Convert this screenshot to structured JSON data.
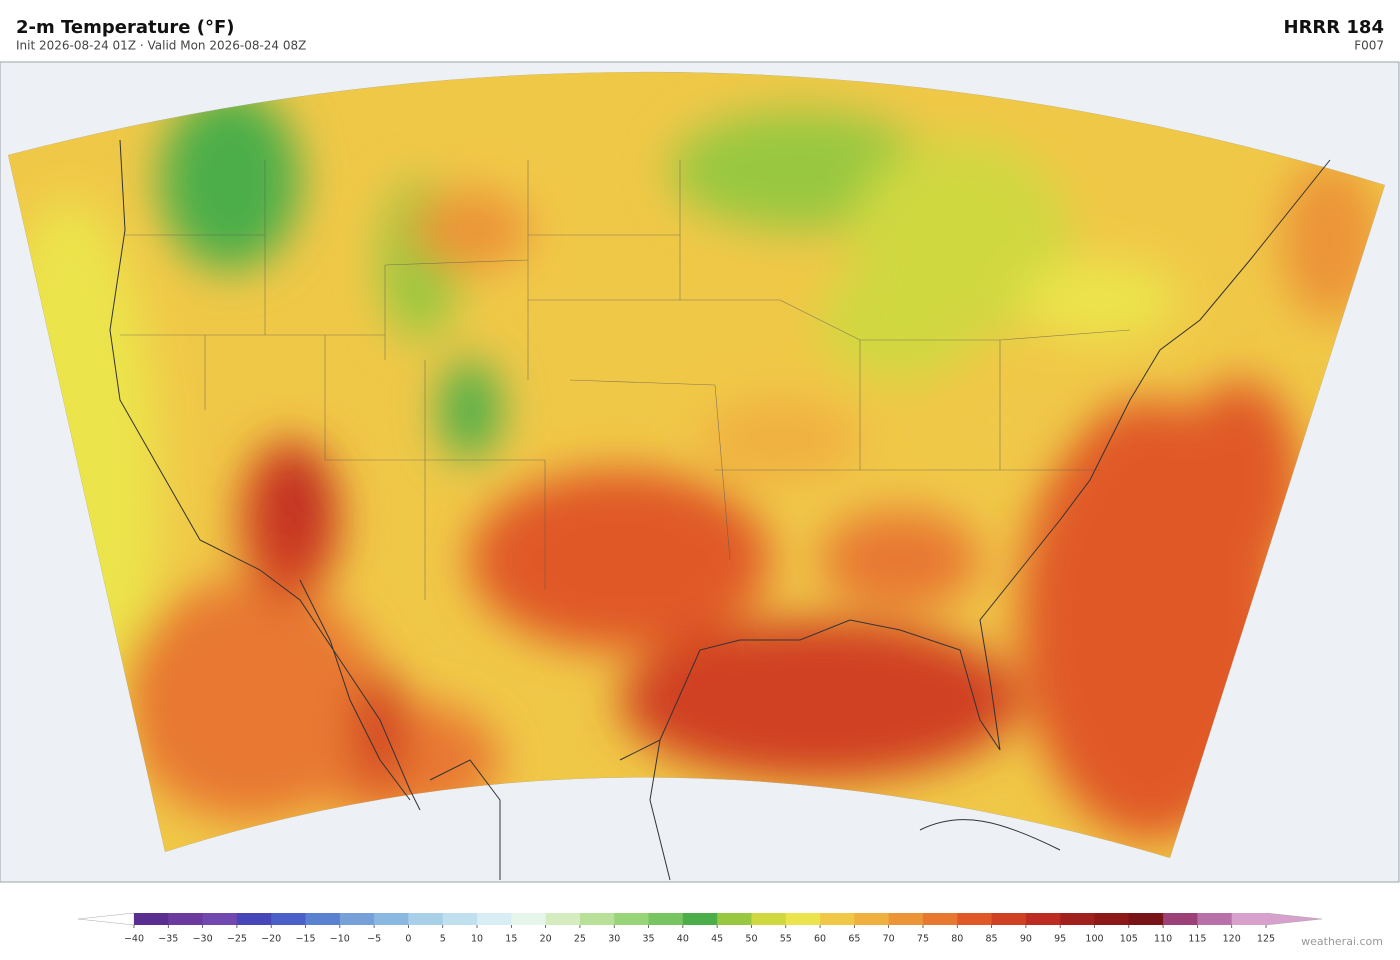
{
  "header": {
    "title": "2-m Temperature  (°F)",
    "subtitle": "Init 2026-08-24 01Z   ·   Valid Mon 2026-08-24 08Z",
    "model": "HRRR  184",
    "forecast_hour": "F007"
  },
  "colorbar": {
    "ticks": [
      {
        "value": -40,
        "label": "−40"
      },
      {
        "value": -35,
        "label": "−35"
      },
      {
        "value": -30,
        "label": "−30"
      },
      {
        "value": -25,
        "label": "−25"
      },
      {
        "value": -20,
        "label": "−20"
      },
      {
        "value": -15,
        "label": "−15"
      },
      {
        "value": -10,
        "label": "−10"
      },
      {
        "value": -5,
        "label": "−5"
      },
      0,
      5,
      10,
      15,
      20,
      25,
      30,
      35,
      40,
      45,
      50,
      55,
      60,
      65,
      70,
      75,
      80,
      85,
      90,
      95,
      100,
      105,
      110,
      115,
      120,
      125
    ],
    "colors": [
      "#5a2d91",
      "#6a3a9e",
      "#7048b0",
      "#4646b8",
      "#4a60c8",
      "#5a80d0",
      "#78a0d8",
      "#8ab8e0",
      "#a8d0e8",
      "#c0e0f0",
      "#d8eef4",
      "#e6f6ea",
      "#d4ecc0",
      "#b8e098",
      "#98d478",
      "#78c460",
      "#4cae48",
      "#98c840",
      "#d0d840",
      "#ece44c",
      "#f0c848",
      "#f0b040",
      "#ec9438",
      "#e87830",
      "#e05828",
      "#d04022",
      "#bc2c22",
      "#a0201e",
      "#8c1818",
      "#781418",
      "#9c4078",
      "#b870a8",
      "#d8a0cc"
    ],
    "under_color": "#ffffff",
    "over_color": "#d8a0cc"
  },
  "footer": {
    "credit": "weatherai.com"
  }
}
